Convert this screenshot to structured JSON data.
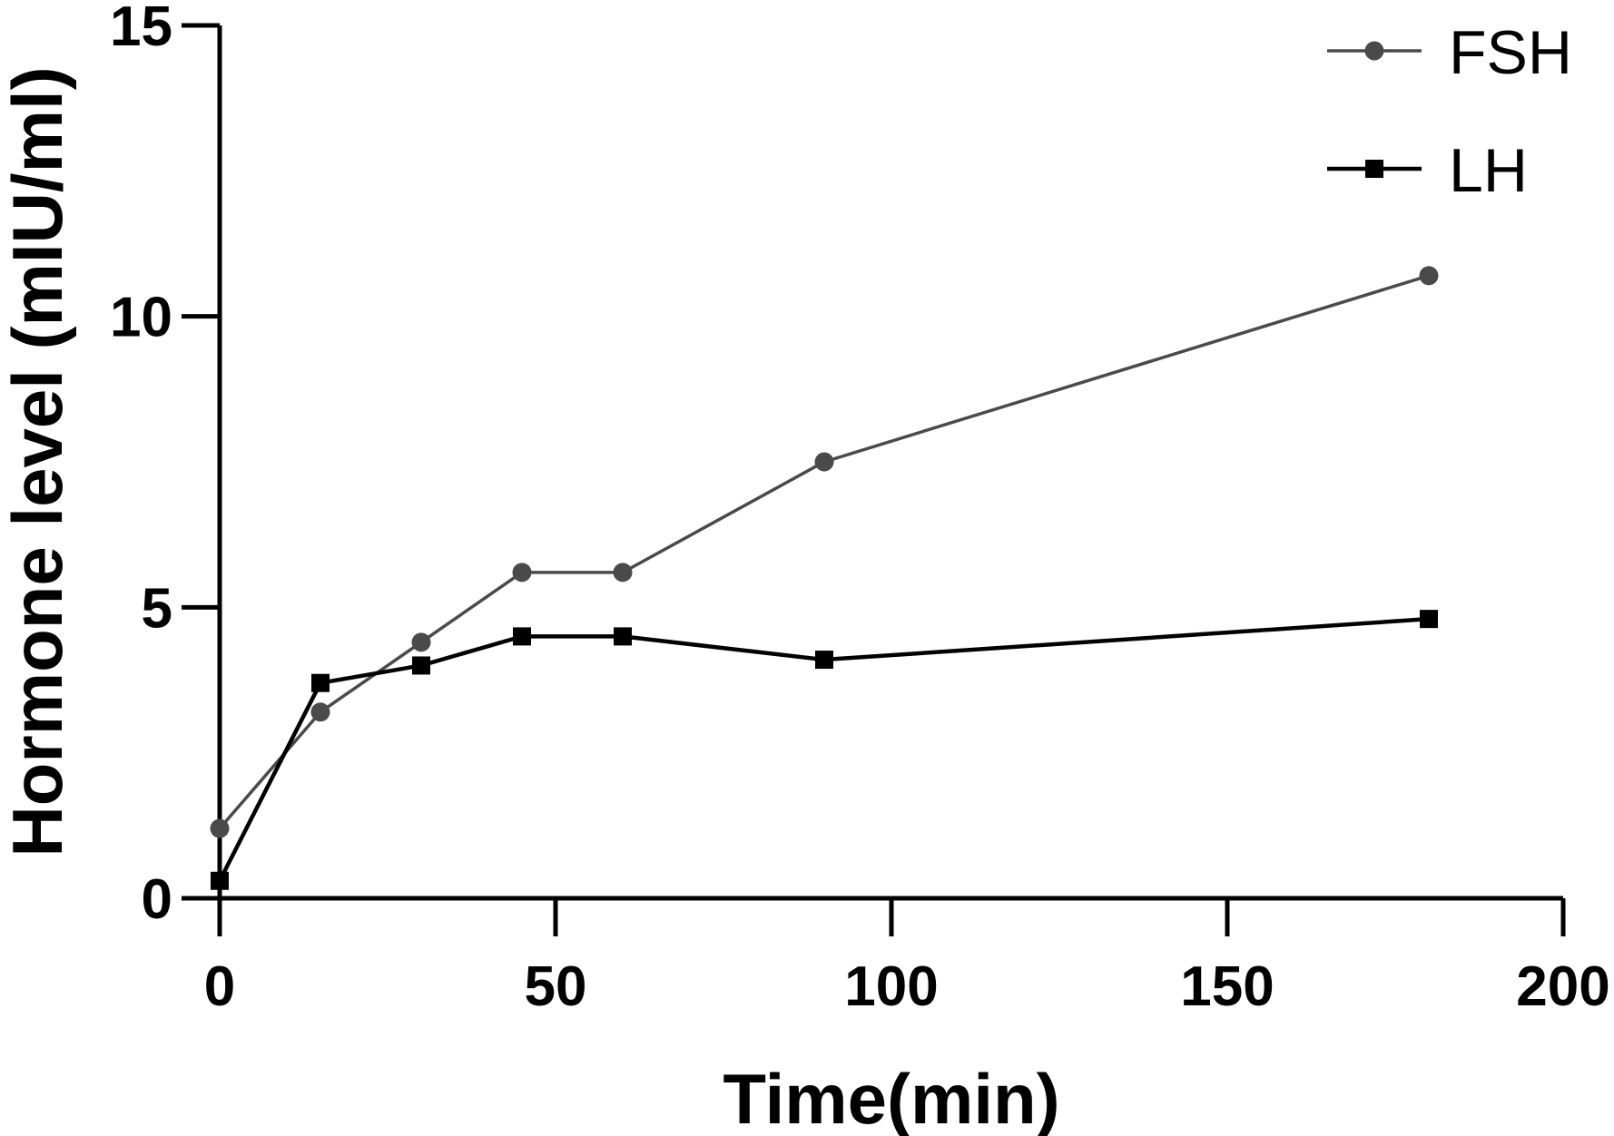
{
  "chart_data": {
    "type": "line",
    "xlabel": "Time(min)",
    "ylabel": "Hormone level (mIU/ml)",
    "xlim": [
      0,
      200
    ],
    "ylim": [
      0,
      15
    ],
    "xticks": [
      "0",
      "50",
      "100",
      "150",
      "200"
    ],
    "yticks": [
      "0",
      "5",
      "10",
      "15"
    ],
    "legend_position": "top-right",
    "grid": false,
    "series": [
      {
        "name": "FSH",
        "marker": "circle",
        "color": "#4a4a4a",
        "x": [
          0,
          15,
          30,
          45,
          60,
          90,
          180
        ],
        "y": [
          1.2,
          3.2,
          4.4,
          5.6,
          5.6,
          7.5,
          10.7
        ]
      },
      {
        "name": "LH",
        "marker": "square",
        "color": "#000000",
        "x": [
          0,
          15,
          30,
          45,
          60,
          90,
          180
        ],
        "y": [
          0.3,
          3.7,
          4.0,
          4.5,
          4.5,
          4.1,
          4.8
        ]
      }
    ]
  }
}
